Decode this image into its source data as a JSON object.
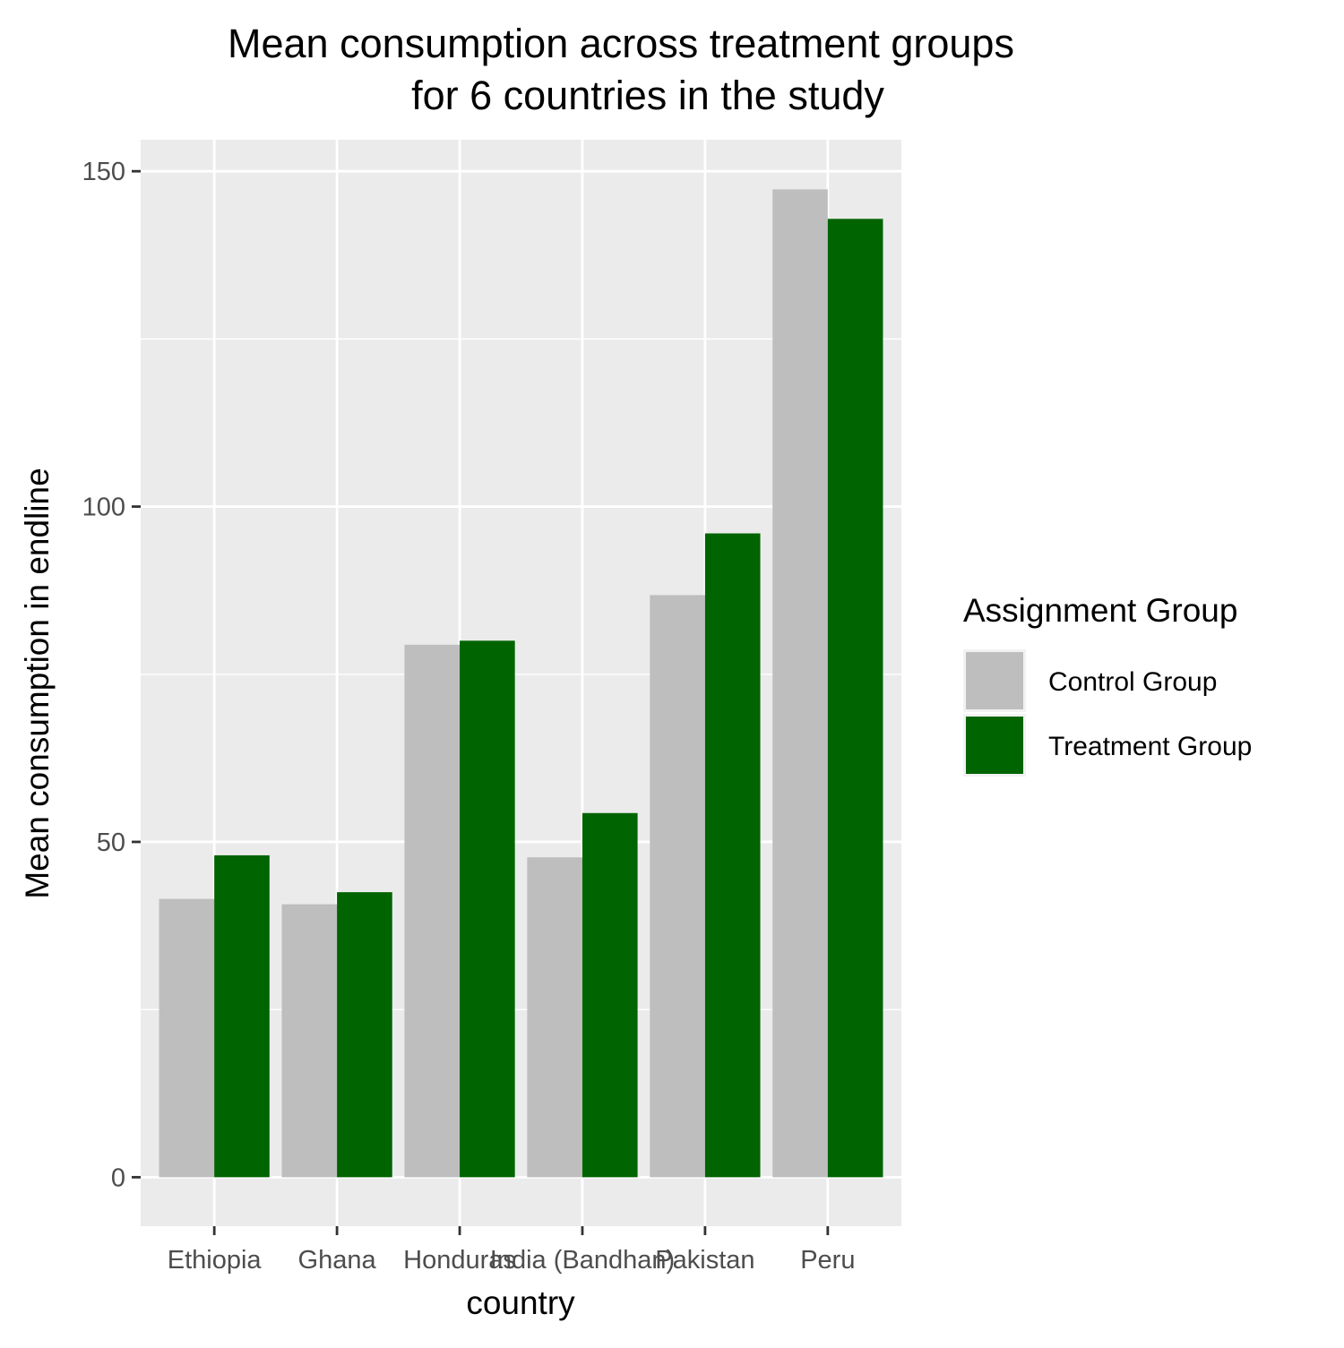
{
  "chart_data": {
    "type": "bar",
    "title_lines": [
      "Mean consumption across treatment groups",
      "for 6 countries in the study"
    ],
    "xlabel": "country",
    "ylabel": "Mean consumption in endline",
    "categories": [
      "Ethiopia",
      "Ghana",
      "Honduras",
      "India (Bandhan)",
      "Pakistan",
      "Peru"
    ],
    "series": [
      {
        "name": "Control Group",
        "color": "#bebebe",
        "values": [
          41.5,
          40.7,
          79.4,
          47.7,
          86.8,
          147.3
        ]
      },
      {
        "name": "Treatment Group",
        "color": "#006400",
        "values": [
          48.0,
          42.5,
          80.0,
          54.3,
          96.0,
          142.9
        ]
      }
    ],
    "yticks": [
      0,
      50,
      100,
      150
    ],
    "ylim": [
      -7.3,
      154.7
    ],
    "grid": true,
    "legend": {
      "title": "Assignment Group",
      "position": "right"
    }
  }
}
